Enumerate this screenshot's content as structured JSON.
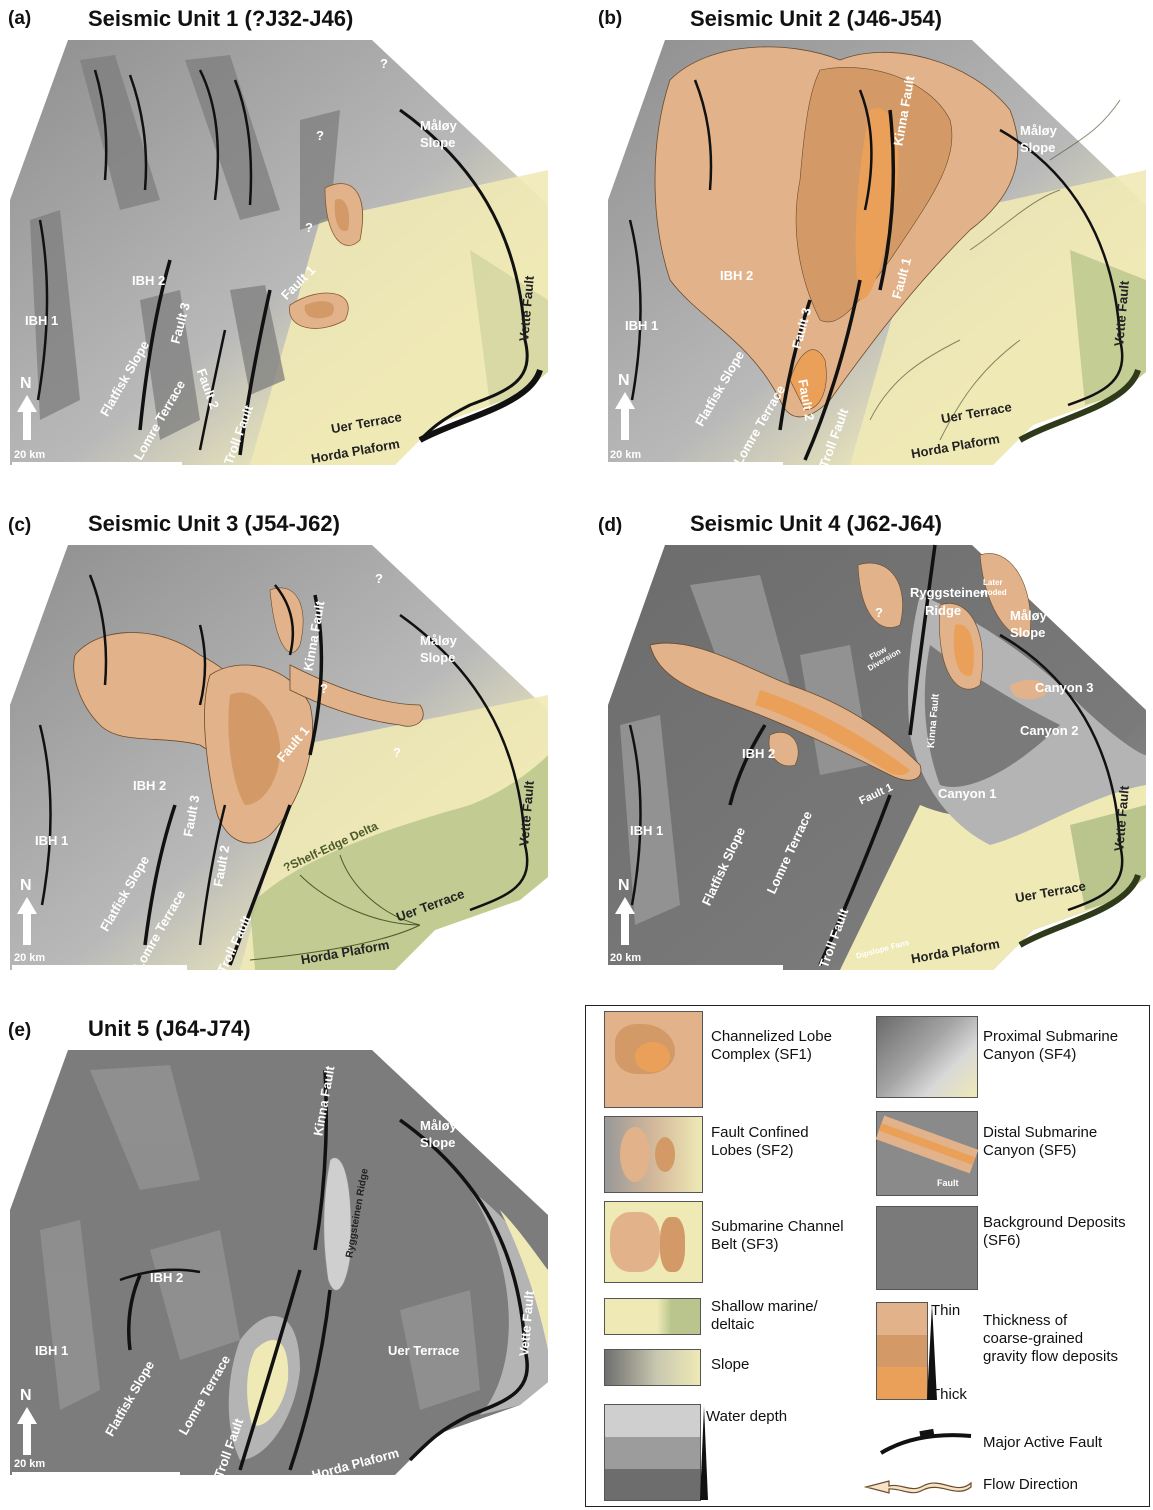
{
  "panels": [
    {
      "letter": "(a)",
      "title": "Seismic Unit 1 (?J32-J46)",
      "labels": {
        "ibh1": "IBH 1",
        "ibh2": "IBH 2",
        "fault3": "Fault 3",
        "fault2": "Fault 2",
        "fault1": "Fault 1",
        "flatfisk": "Flatfisk Slope",
        "lomre": "Lomre Terrace",
        "troll": "Troll Fault",
        "uer": "Uer Terrace",
        "horda": "Horda Plaform",
        "vette": "Vette Fault",
        "maloy": "Måløy\nSlope",
        "q1": "?",
        "q2": "?",
        "q3": "?",
        "north": "N",
        "scale": "20 km"
      }
    },
    {
      "letter": "(b)",
      "title": "Seismic Unit 2 (J46-J54)",
      "labels": {
        "ibh1": "IBH 1",
        "ibh2": "IBH 2",
        "fault3": "Fault 3",
        "fault2": "Fault 2",
        "fault1": "Fault 1",
        "kinna": "Kinna Fault",
        "flatfisk": "Flatfisk Slope",
        "lomre": "Lomre Terrace",
        "troll": "Troll Fault",
        "uer": "Uer Terrace",
        "horda": "Horda Plaform",
        "vette": "Vette Fault",
        "maloy": "Måløy\nSlope",
        "q1": "?",
        "north": "N",
        "scale": "20 km"
      }
    },
    {
      "letter": "(c)",
      "title": "Seismic Unit 3 (J54-J62)",
      "labels": {
        "ibh1": "IBH 1",
        "ibh2": "IBH 2",
        "fault3": "Fault 3",
        "fault2": "Fault 2",
        "fault1": "Fault 1",
        "kinna": "Kinna Fault",
        "flatfisk": "Flatfisk Slope",
        "lomre": "Lomre Terrace",
        "troll": "Troll Fault",
        "uer": "Uer Terrace",
        "horda": "Horda Plaform",
        "vette": "Vette Fault",
        "maloy": "Måløy\nSlope",
        "delta": "?Shelf-Edge Delta",
        "q1": "?",
        "q2": "?",
        "q3": "?",
        "north": "N",
        "scale": "20 km"
      }
    },
    {
      "letter": "(d)",
      "title": "Seismic Unit 4 (J62-J64)",
      "labels": {
        "ibh1": "IBH 1",
        "ibh2": "IBH 2",
        "fault1": "Fault 1",
        "kinna": "Kinna Fault",
        "ridge": "Ryggsteinen\nRidge",
        "flatfisk": "Flatfisk Slope",
        "lomre": "Lomre Terrace",
        "troll": "Troll Fault",
        "uer": "Uer Terrace",
        "horda": "Horda Plaform",
        "vette": "Vette Fault",
        "maloy": "Måløy\nSlope",
        "canyon1": "Canyon 1",
        "canyon2": "Canyon 2",
        "canyon3": "Canyon 3",
        "flow": "Flow\nDiversion",
        "eroded": "Later\neroded",
        "dipslope": "Dipslope Fans",
        "q1": "?",
        "north": "N",
        "scale": "20 km"
      }
    },
    {
      "letter": "(e)",
      "title": "Unit 5 (J64-J74)",
      "labels": {
        "ibh1": "IBH 1",
        "ibh2": "IBH 2",
        "kinna": "Kinna Fault",
        "ridge": "Ryggsteinen Ridge",
        "flatfisk": "Flatfisk Slope",
        "lomre": "Lomre Terrace",
        "troll": "Troll Fault",
        "uer": "Uer Terrace",
        "horda": "Horda Plaform",
        "vette": "Vette Fault",
        "maloy": "Måløy\nSlope",
        "north": "N",
        "scale": "20 km"
      }
    }
  ],
  "legend": {
    "sf1": "Channelized Lobe\nComplex (SF1)",
    "sf2": "Fault Confined\nLobes (SF2)",
    "sf3": "Submarine Channel\nBelt (SF3)",
    "sf4": "Proximal Submarine\nCanyon (SF4)",
    "sf5": "Distal Submarine\nCanyon (SF5)",
    "sf6": "Background Deposits\n(SF6)",
    "shallow": "Shallow marine/\ndeltaic",
    "slope": "Slope",
    "water": "Water depth",
    "thin": "Thin",
    "thick": "Thick",
    "thickness": "Thickness of\ncoarse-grained\ngravity flow deposits",
    "fault": "Major Active Fault",
    "flow": "Flow Direction",
    "sf2_fault": "Fault"
  },
  "colors": {
    "shallow": "#efe9b6",
    "deltaic": "#b9c58c",
    "slope_dark": "#8a8a8a",
    "slope_light": "#ece7b9",
    "bg_light": "#b4b4b4",
    "bg_mid": "#9a9a9a",
    "bg_dark": "#6f6f6f",
    "lobe_thin": "#e2b38a",
    "lobe_mid": "#d39a67",
    "lobe_thick": "#eba05a"
  }
}
